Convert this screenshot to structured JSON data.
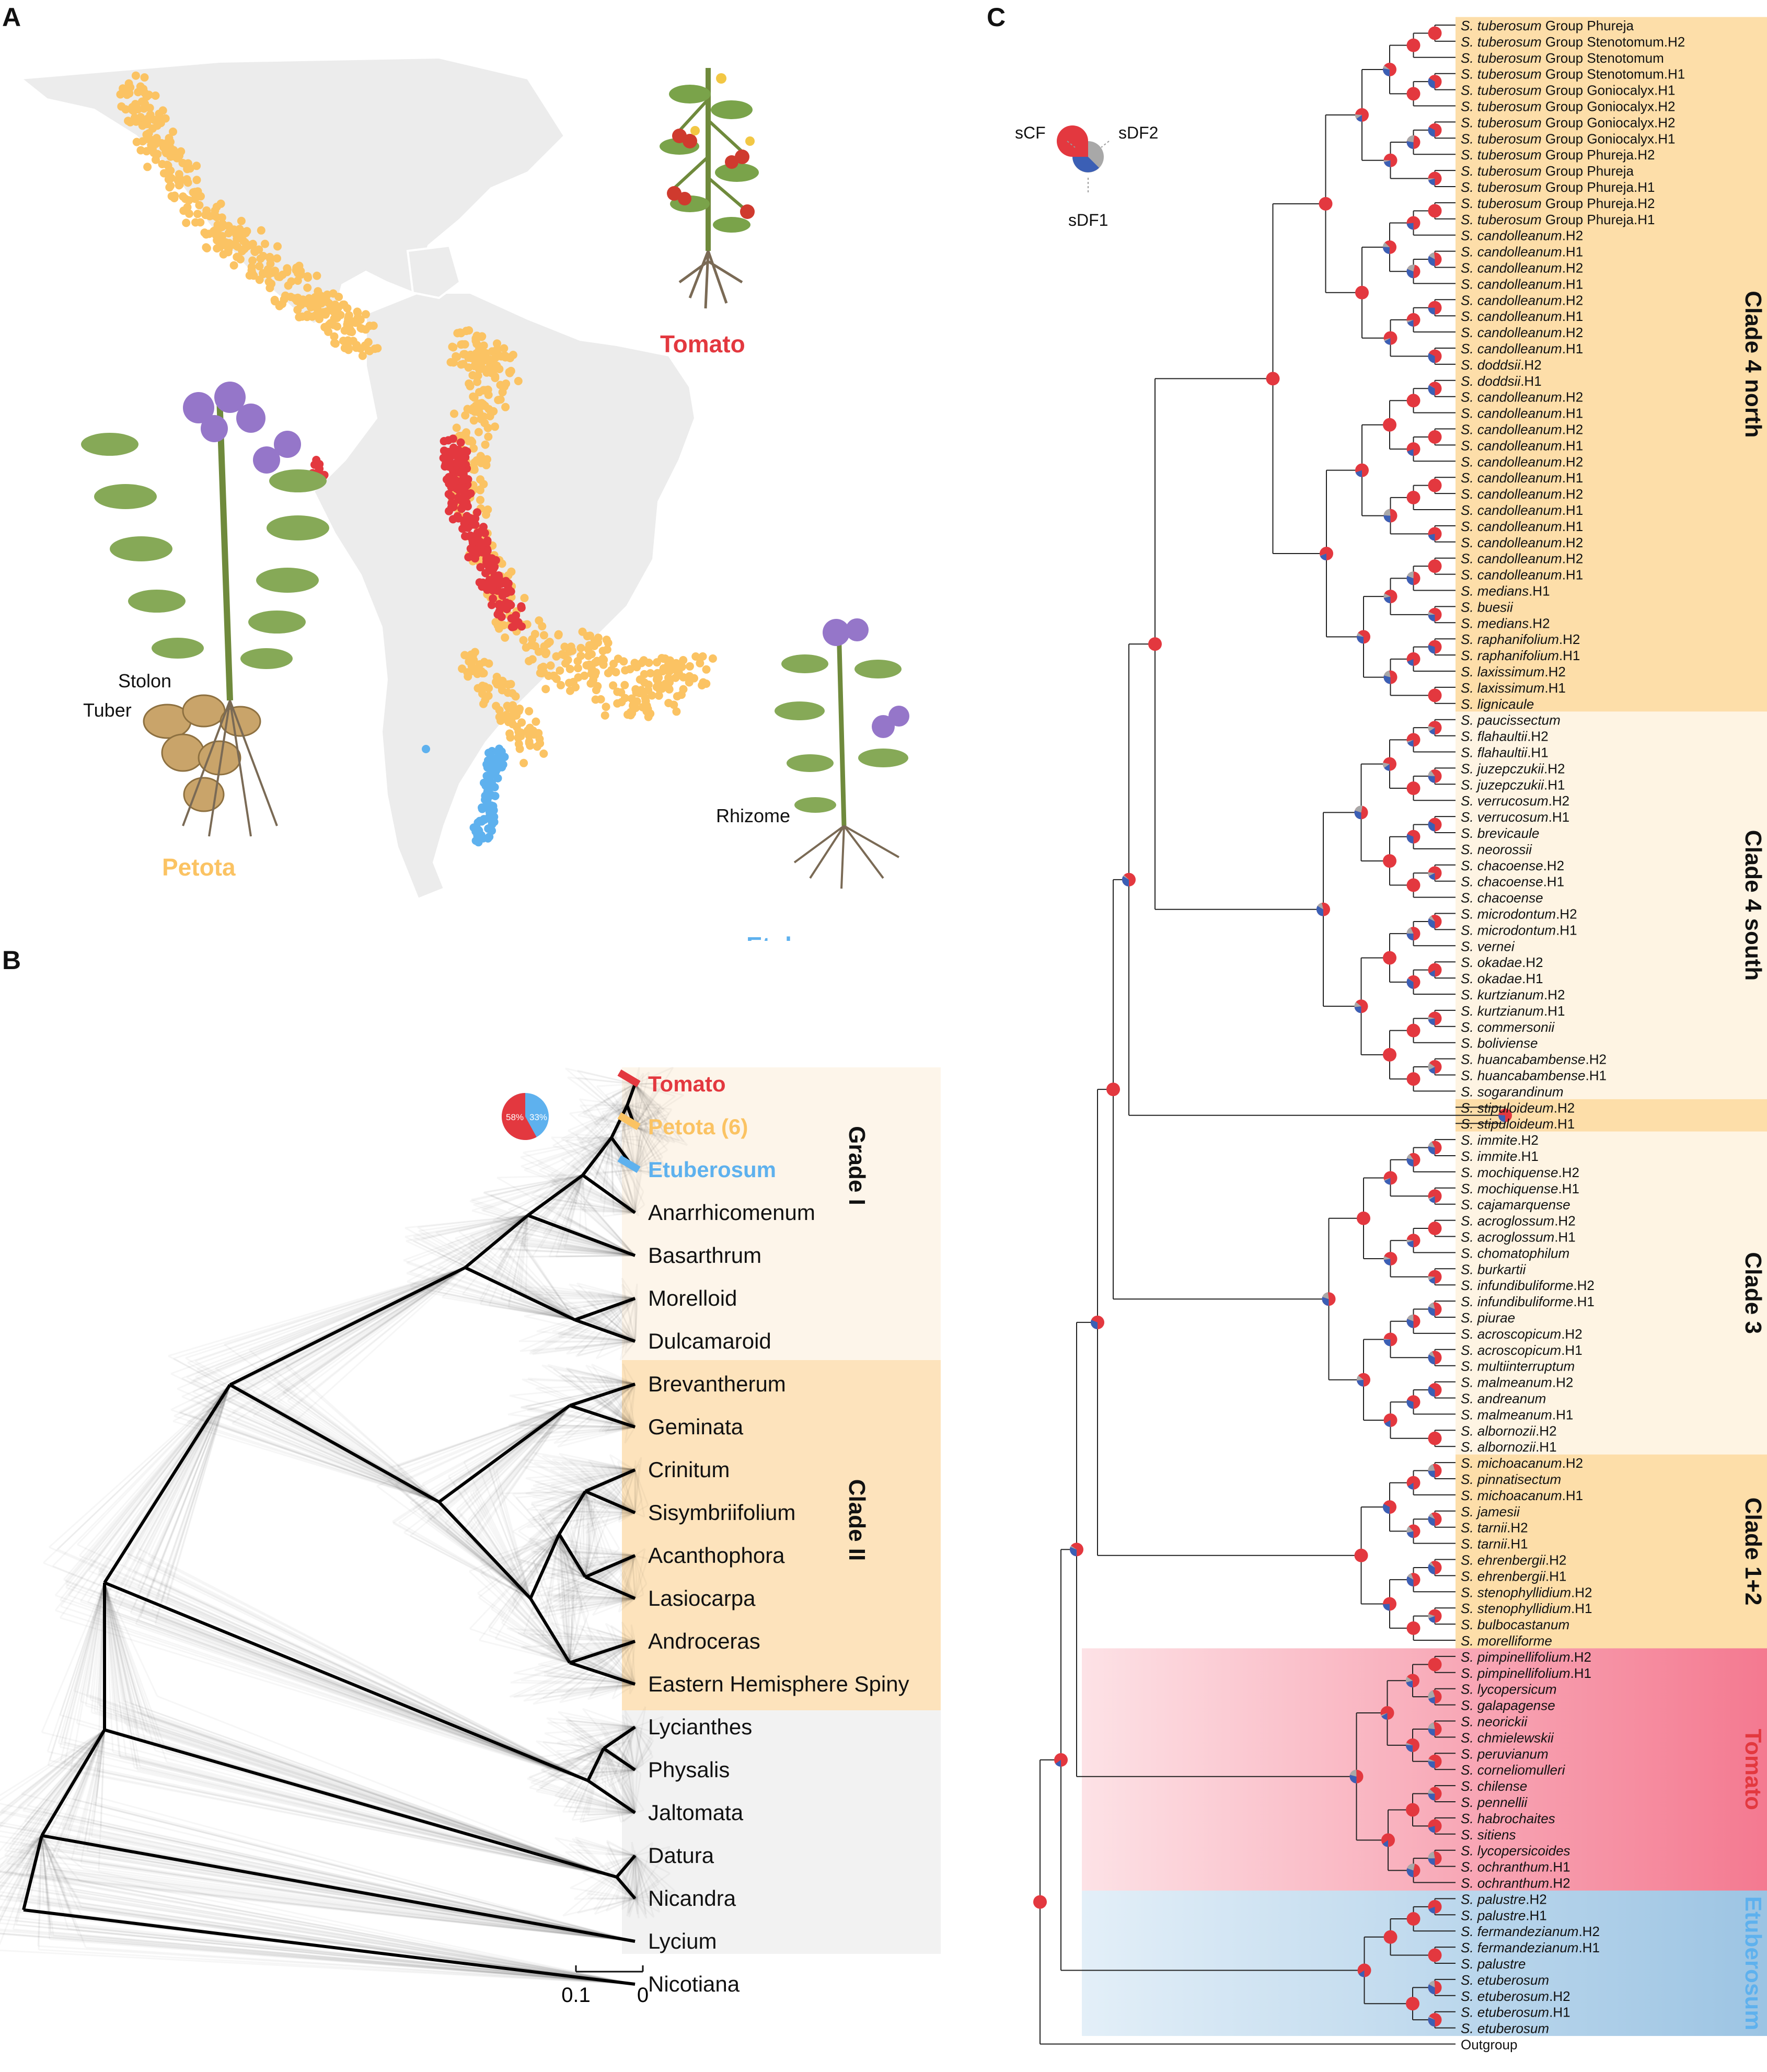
{
  "panels": {
    "a": "A",
    "b": "B",
    "c": "C"
  },
  "colors": {
    "tomato": "#e3383f",
    "petota": "#fbc363",
    "etuberosum": "#5eb1ee",
    "sdf1": "#3b5fb5",
    "sdf2": "#a8a8a8",
    "land": "#ececec"
  },
  "panel_a": {
    "labels": {
      "tomato": "Tomato",
      "petota": "Petota",
      "etuberosum": "Etuberosum",
      "stolon": "Stolon",
      "tuber": "Tuber",
      "rhizome": "Rhizome"
    },
    "icons": {
      "tomato_plant": "tomato-plant-illustration",
      "potato_plant": "potato-plant-illustration",
      "etuberosum_plant": "etuberosum-plant-illustration",
      "map": "americas-map"
    }
  },
  "panel_b": {
    "pie_labels": [
      "58%",
      "33%"
    ],
    "grade_label": "Grade I",
    "clade2_label": "Clade II",
    "scale_labels": [
      "0.1",
      "0"
    ],
    "taxa": [
      {
        "name": "Tomato",
        "color": "tomato"
      },
      {
        "name": "Petota (6)",
        "color": "petota"
      },
      {
        "name": "Etuberosum",
        "color": "etuberosum"
      },
      {
        "name": "Anarrhicomenum"
      },
      {
        "name": "Basarthrum"
      },
      {
        "name": "Morelloid"
      },
      {
        "name": "Dulcamaroid"
      },
      {
        "name": "Brevantherum"
      },
      {
        "name": "Geminata"
      },
      {
        "name": "Crinitum"
      },
      {
        "name": "Sisymbriifolium"
      },
      {
        "name": "Acanthophora"
      },
      {
        "name": "Lasiocarpa"
      },
      {
        "name": "Androceras"
      },
      {
        "name": "Eastern Hemisphere Spiny"
      },
      {
        "name": "Lycianthes"
      },
      {
        "name": "Physalis"
      },
      {
        "name": "Jaltomata"
      },
      {
        "name": "Datura"
      },
      {
        "name": "Nicandra"
      },
      {
        "name": "Lycium"
      },
      {
        "name": "Nicotiana"
      }
    ]
  },
  "panel_c": {
    "legend": {
      "scf": "sCF",
      "sdf2": "sDF2",
      "sdf1": "sDF1"
    },
    "clades": [
      {
        "label": "Clade 4 north",
        "color": "petota"
      },
      {
        "label": "Clade 4 south",
        "color": "petota"
      },
      {
        "label": "Clade 3",
        "color": "petota"
      },
      {
        "label": "Clade 1+2",
        "color": "petota"
      },
      {
        "label": "Tomato",
        "color": "tomato"
      },
      {
        "label": "Etuberosum",
        "color": "etuberosum"
      }
    ],
    "tips": [
      [
        "S. tuberosum",
        " Group Phureja"
      ],
      [
        "S. tuberosum",
        " Group Stenotomum.H2"
      ],
      [
        "S. tuberosum",
        " Group Stenotomum"
      ],
      [
        "S. tuberosum",
        " Group Stenotomum.H1"
      ],
      [
        "S. tuberosum",
        " Group Goniocalyx.H1"
      ],
      [
        "S. tuberosum",
        " Group Goniocalyx.H2"
      ],
      [
        "S. tuberosum",
        " Group Goniocalyx.H2"
      ],
      [
        "S. tuberosum",
        " Group Goniocalyx.H1"
      ],
      [
        "S. tuberosum",
        " Group Phureja.H2"
      ],
      [
        "S. tuberosum",
        " Group Phureja"
      ],
      [
        "S. tuberosum",
        " Group Phureja.H1"
      ],
      [
        "S. tuberosum",
        " Group Phureja.H2"
      ],
      [
        "S. tuberosum",
        " Group Phureja.H1"
      ],
      [
        "S. candolleanum",
        ".H2"
      ],
      [
        "S. candolleanum",
        ".H1"
      ],
      [
        "S. candolleanum",
        ".H2"
      ],
      [
        "S. candolleanum",
        ".H1"
      ],
      [
        "S. candolleanum",
        ".H2"
      ],
      [
        "S. candolleanum",
        ".H1"
      ],
      [
        "S. candolleanum",
        ".H2"
      ],
      [
        "S. candolleanum",
        ".H1"
      ],
      [
        "S. doddsii",
        ".H2"
      ],
      [
        "S. doddsii",
        ".H1"
      ],
      [
        "S. candolleanum",
        ".H2"
      ],
      [
        "S. candolleanum",
        ".H1"
      ],
      [
        "S. candolleanum",
        ".H2"
      ],
      [
        "S. candolleanum",
        ".H1"
      ],
      [
        "S. candolleanum",
        ".H2"
      ],
      [
        "S. candolleanum",
        ".H1"
      ],
      [
        "S. candolleanum",
        ".H2"
      ],
      [
        "S. candolleanum",
        ".H1"
      ],
      [
        "S. candolleanum",
        ".H1"
      ],
      [
        "S. candolleanum",
        ".H2"
      ],
      [
        "S. candolleanum",
        ".H2"
      ],
      [
        "S. candolleanum",
        ".H1"
      ],
      [
        "S. medians",
        ".H1"
      ],
      [
        "S. buesii",
        ""
      ],
      [
        "S. medians",
        ".H2"
      ],
      [
        "S. raphanifolium",
        ".H2"
      ],
      [
        "S. raphanifolium",
        ".H1"
      ],
      [
        "S. laxissimum",
        ".H2"
      ],
      [
        "S. laxissimum",
        ".H1"
      ],
      [
        "S. lignicaule",
        ""
      ],
      [
        "S. paucissectum",
        ""
      ],
      [
        "S. flahaultii",
        ".H2"
      ],
      [
        "S. flahaultii",
        ".H1"
      ],
      [
        "S. juzepczukii",
        ".H2"
      ],
      [
        "S. juzepczukii",
        ".H1"
      ],
      [
        "S. verrucosum",
        ".H2"
      ],
      [
        "S. verrucosum",
        ".H1"
      ],
      [
        "S. brevicaule",
        ""
      ],
      [
        "S. neorossii",
        ""
      ],
      [
        "S. chacoense",
        ".H2"
      ],
      [
        "S. chacoense",
        ".H1"
      ],
      [
        "S. chacoense",
        ""
      ],
      [
        "S. microdontum",
        ".H2"
      ],
      [
        "S. microdontum",
        ".H1"
      ],
      [
        "S. vernei",
        ""
      ],
      [
        "S. okadae",
        ".H2"
      ],
      [
        "S. okadae",
        ".H1"
      ],
      [
        "S. kurtzianum",
        ".H2"
      ],
      [
        "S. kurtzianum",
        ".H1"
      ],
      [
        "S. commersonii",
        ""
      ],
      [
        "S. boliviense",
        ""
      ],
      [
        "S. huancabambense",
        ".H2"
      ],
      [
        "S. huancabambense",
        ".H1"
      ],
      [
        "S. sogarandinum",
        ""
      ],
      [
        "S. stipuloideum",
        ".H2"
      ],
      [
        "S. stipuloideum",
        ".H1"
      ],
      [
        "S. immite",
        ".H2"
      ],
      [
        "S. immite",
        ".H1"
      ],
      [
        "S. mochiquense",
        ".H2"
      ],
      [
        "S. mochiquense",
        ".H1"
      ],
      [
        "S. cajamarquense",
        ""
      ],
      [
        "S. acroglossum",
        ".H2"
      ],
      [
        "S. acroglossum",
        ".H1"
      ],
      [
        "S. chomatophilum",
        ""
      ],
      [
        "S. burkartii",
        ""
      ],
      [
        "S. infundibuliforme",
        ".H2"
      ],
      [
        "S. infundibuliforme",
        ".H1"
      ],
      [
        "S. piurae",
        ""
      ],
      [
        "S. acroscopicum",
        ".H2"
      ],
      [
        "S. acroscopicum",
        ".H1"
      ],
      [
        "S. multiinterruptum",
        ""
      ],
      [
        "S. malmeanum",
        ".H2"
      ],
      [
        "S. andreanum",
        ""
      ],
      [
        "S. malmeanum",
        ".H1"
      ],
      [
        "S. albornozii",
        ".H2"
      ],
      [
        "S. albornozii",
        ".H1"
      ],
      [
        "S. michoacanum",
        ".H2"
      ],
      [
        "S. pinnatisectum",
        ""
      ],
      [
        "S. michoacanum",
        ".H1"
      ],
      [
        "S. jamesii",
        ""
      ],
      [
        "S. tarnii",
        ".H2"
      ],
      [
        "S. tarnii",
        ".H1"
      ],
      [
        "S. ehrenbergii",
        ".H2"
      ],
      [
        "S. ehrenbergii",
        ".H1"
      ],
      [
        "S. stenophyllidium",
        ".H2"
      ],
      [
        "S. stenophyllidium",
        ".H1"
      ],
      [
        "S. bulbocastanum",
        ""
      ],
      [
        "S. morelliforme",
        ""
      ],
      [
        "S. pimpinellifolium",
        ".H2"
      ],
      [
        "S. pimpinellifolium",
        ".H1"
      ],
      [
        "S. lycopersicum",
        ""
      ],
      [
        "S. galapagense",
        ""
      ],
      [
        "S. neorickii",
        ""
      ],
      [
        "S. chmielewskii",
        ""
      ],
      [
        "S. peruvianum",
        ""
      ],
      [
        "S. corneliomulleri",
        ""
      ],
      [
        "S. chilense",
        ""
      ],
      [
        "S. pennellii",
        ""
      ],
      [
        "S. habrochaites",
        ""
      ],
      [
        "S. sitiens",
        ""
      ],
      [
        "S. lycopersicoides",
        ""
      ],
      [
        "S. ochranthum",
        ".H1"
      ],
      [
        "S. ochranthum",
        ".H2"
      ],
      [
        "S. palustre",
        ".H2"
      ],
      [
        "S. palustre",
        ".H1"
      ],
      [
        "S. fermandezianum",
        ".H2"
      ],
      [
        "S. fermandezianum",
        ".H1"
      ],
      [
        "S. palustre",
        ""
      ],
      [
        "S. etuberosum",
        ""
      ],
      [
        "S. etuberosum",
        ".H2"
      ],
      [
        "S. etuberosum",
        ".H1"
      ],
      [
        "S. etuberosum",
        ""
      ],
      [
        "Outgroup",
        ""
      ]
    ]
  }
}
